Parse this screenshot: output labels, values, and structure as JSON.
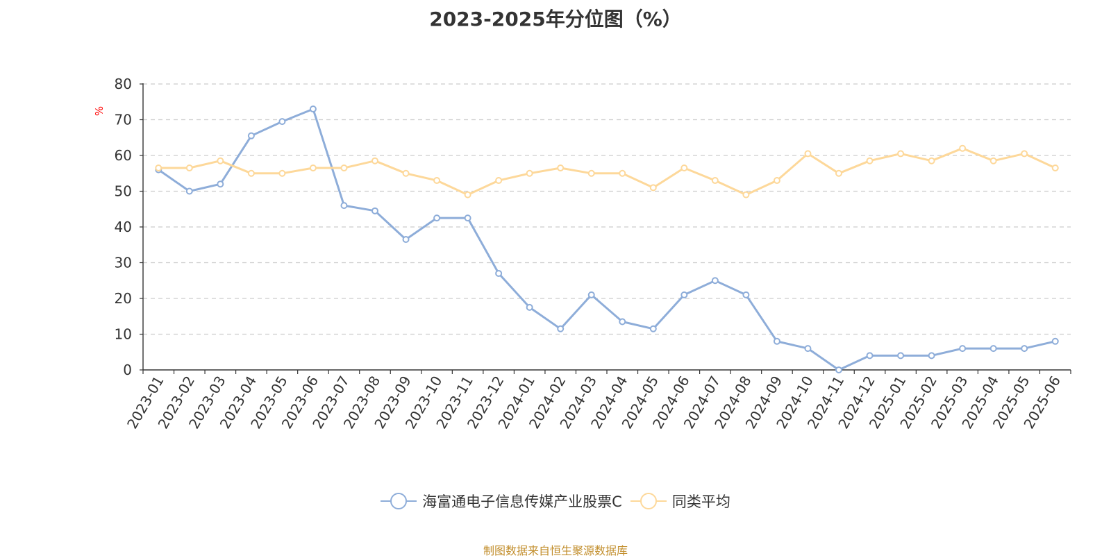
{
  "chart_data": {
    "type": "line",
    "title": "2023-2025年分位图（%）",
    "ylabel": "%",
    "xlabel": "",
    "ylim": [
      0,
      80
    ],
    "yticks": [
      "0",
      "10",
      "20",
      "30",
      "40",
      "50",
      "60",
      "70",
      "80"
    ],
    "grid": true,
    "legend_position": "bottom",
    "categories": [
      "2023-01",
      "2023-02",
      "2023-03",
      "2023-04",
      "2023-05",
      "2023-06",
      "2023-07",
      "2023-08",
      "2023-09",
      "2023-10",
      "2023-11",
      "2023-12",
      "2024-01",
      "2024-02",
      "2024-03",
      "2024-04",
      "2024-05",
      "2024-06",
      "2024-07",
      "2024-08",
      "2024-09",
      "2024-10",
      "2024-11",
      "2024-12",
      "2025-01",
      "2025-02",
      "2025-03",
      "2025-04",
      "2025-05",
      "2025-06"
    ],
    "series": [
      {
        "name": "海富通电子信息传媒产业股票C",
        "color": "#8eadd9",
        "values": [
          56,
          50,
          52,
          65.5,
          69.5,
          73,
          46,
          44.5,
          36.5,
          42.5,
          42.5,
          27,
          17.5,
          11.5,
          21,
          13.5,
          11.5,
          21,
          25,
          21,
          8,
          6,
          0,
          4,
          4,
          4,
          6,
          6,
          6,
          8
        ]
      },
      {
        "name": "同类平均",
        "color": "#fdd89a",
        "values": [
          56.5,
          56.5,
          58.5,
          55,
          55,
          56.5,
          56.5,
          58.5,
          55,
          53,
          49,
          53,
          55,
          56.5,
          55,
          55,
          51,
          56.5,
          53,
          49,
          53,
          60.5,
          55,
          58.5,
          60.5,
          58.5,
          62,
          58.5,
          60.5,
          56.5
        ]
      }
    ]
  },
  "footer": {
    "source": "制图数据来自恒生聚源数据库"
  },
  "colors": {
    "axis": "#333333",
    "grid": "#cccccc",
    "ylabel": "#ff0000",
    "source": "#c28e2c"
  }
}
